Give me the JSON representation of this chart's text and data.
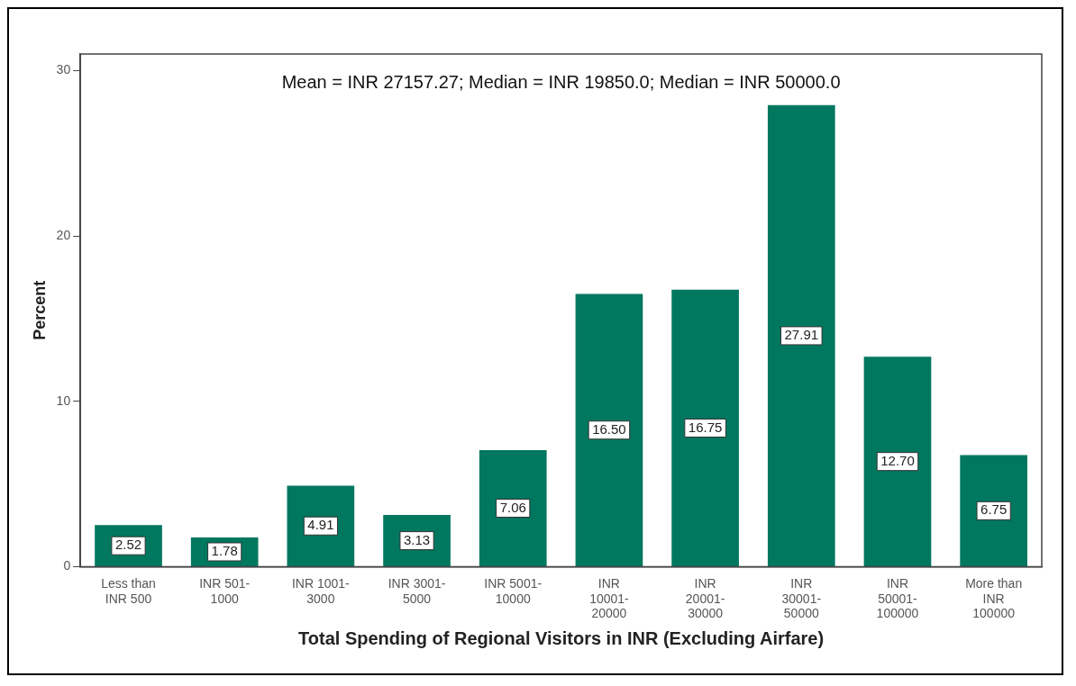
{
  "chart_data": {
    "type": "bar",
    "xlabel": "Total Spending of Regional Visitors in INR (Excluding Airfare)",
    "ylabel": "Percent",
    "annotations": [
      "Mean = INR 27157.27; Median = INR 19850.0; Median = INR 50000.0"
    ],
    "categories": [
      "Less than INR 500",
      "INR 501-1000",
      "INR 1001-3000",
      "INR 3001-5000",
      "INR 5001-10000",
      "INR 10001-20000",
      "INR 20001-30000",
      "INR 30001-50000",
      "INR 50001-100000",
      "More than INR 100000"
    ],
    "values": [
      2.52,
      1.78,
      4.91,
      3.13,
      7.06,
      16.5,
      16.75,
      27.91,
      12.7,
      6.75
    ],
    "value_labels": [
      "2.52",
      "1.78",
      "4.91",
      "3.13",
      "7.06",
      "16.50",
      "16.75",
      "27.91",
      "12.70",
      "6.75"
    ],
    "color": "#00775f",
    "ylim": [
      0,
      31
    ],
    "yticks": [
      0,
      10,
      20,
      30
    ],
    "grid": false,
    "legend": false
  }
}
